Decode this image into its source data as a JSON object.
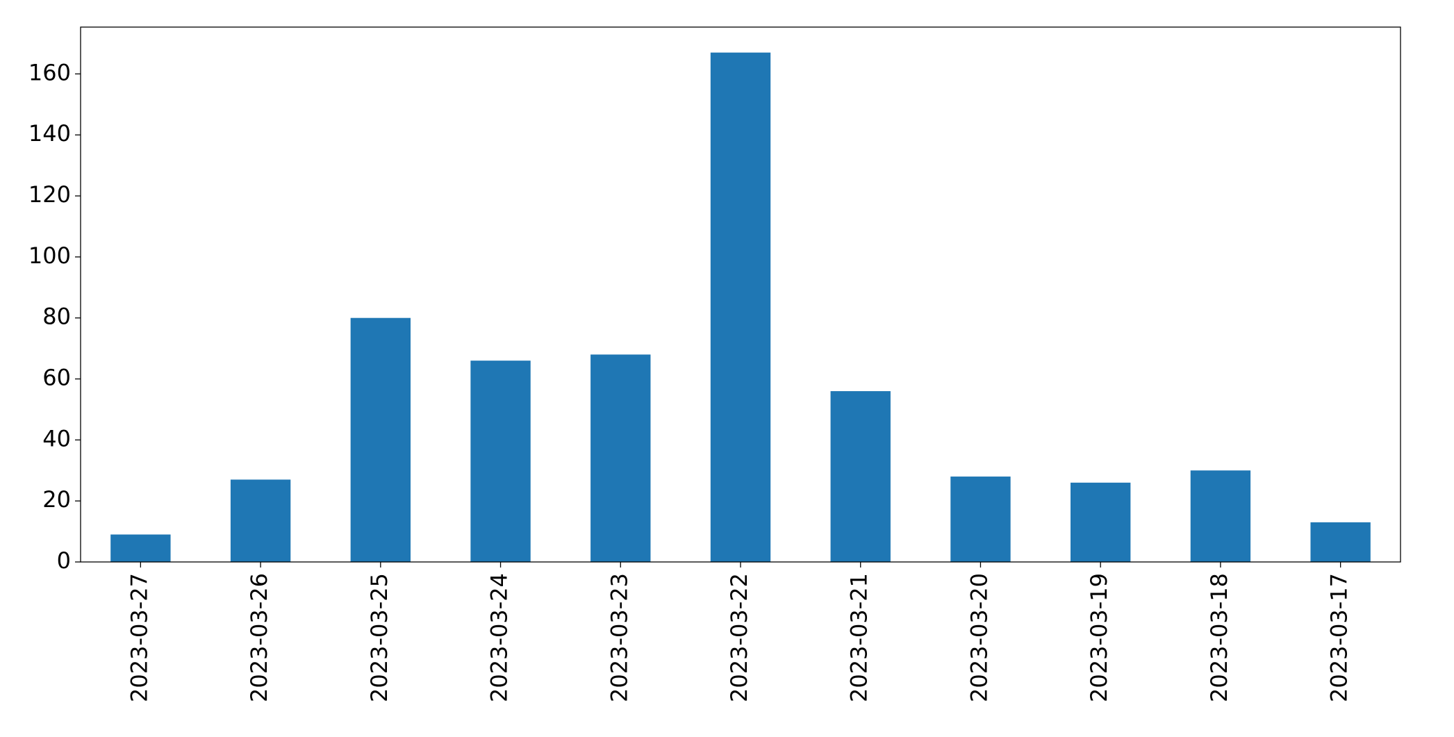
{
  "chart_data": {
    "type": "bar",
    "categories": [
      "2023-03-27",
      "2023-03-26",
      "2023-03-25",
      "2023-03-24",
      "2023-03-23",
      "2023-03-22",
      "2023-03-21",
      "2023-03-20",
      "2023-03-19",
      "2023-03-18",
      "2023-03-17"
    ],
    "values": [
      9,
      27,
      80,
      66,
      68,
      167,
      56,
      28,
      26,
      30,
      13
    ],
    "color": "#1f77b4",
    "ylim": [
      0,
      175.35
    ],
    "yticks": [
      0,
      20,
      40,
      60,
      80,
      100,
      120,
      140,
      160
    ],
    "grid": false
  }
}
